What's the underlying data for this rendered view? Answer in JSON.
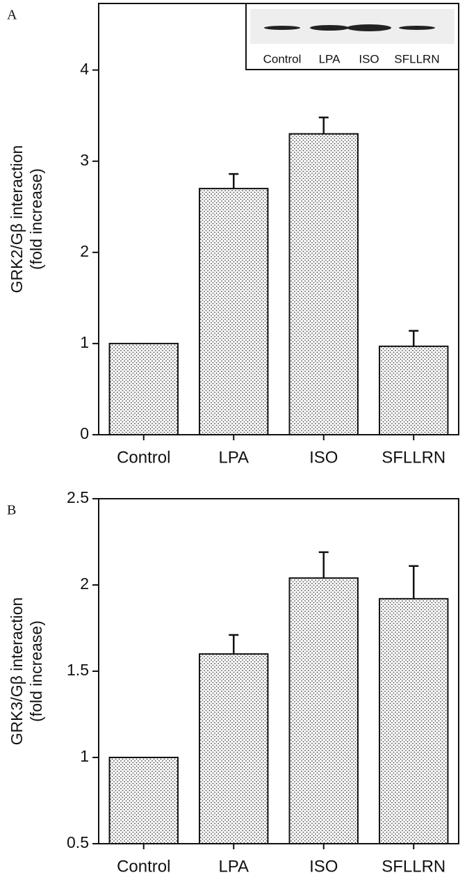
{
  "chart_data": [
    {
      "type": "bar",
      "panel_label": "A",
      "ylabel": [
        "GRK2/Gβ interaction",
        "(fold increase)"
      ],
      "categories": [
        "Control",
        "LPA",
        "ISO",
        "SFLLRN"
      ],
      "values": [
        1.0,
        2.7,
        3.3,
        0.97
      ],
      "errors": [
        0,
        0.16,
        0.18,
        0.17
      ],
      "ylim": [
        0,
        4.73
      ],
      "yticks": [
        0,
        1,
        2,
        3,
        4
      ],
      "inset_labels": [
        "Control",
        "LPA",
        "ISO",
        "SFLLRN"
      ]
    },
    {
      "type": "bar",
      "panel_label": "B",
      "ylabel": [
        "GRK3/Gβ interaction",
        "(fold increase)"
      ],
      "categories": [
        "Control",
        "LPA",
        "ISO",
        "SFLLRN"
      ],
      "values": [
        1.0,
        1.6,
        2.04,
        1.92
      ],
      "errors": [
        0,
        0.11,
        0.15,
        0.19
      ],
      "ylim": [
        0.5,
        2.5
      ],
      "yticks": [
        0.5,
        1,
        1.5,
        2,
        2.5
      ]
    }
  ]
}
